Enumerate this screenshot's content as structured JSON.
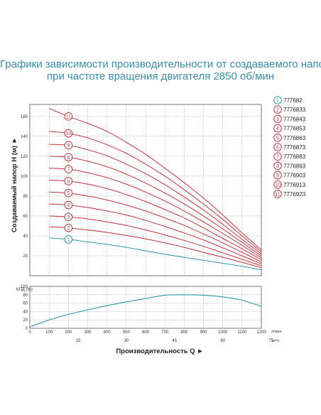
{
  "title_line1": "Графики зависимости производительности от создаваемого напора",
  "title_line2": "при частоте вращения двигателя 2850 об/мин",
  "chart_data": {
    "type": "line",
    "ylabel": "Создаваемый напор Н (м) ►",
    "xlabel": "Производительность Q ►",
    "x_unit_primary": "л/мин",
    "x_unit_secondary": "м³/ч",
    "xlim": [
      0,
      1200
    ],
    "ylim": [
      0,
      170
    ],
    "x_ticks": [
      "0",
      "100",
      "200",
      "300",
      "400",
      "500",
      "600",
      "700",
      "800",
      "900",
      "1000",
      "1100",
      "1200"
    ],
    "x_ticks_secondary": [
      "15",
      "30",
      "45",
      "60",
      "75"
    ],
    "y_ticks": [
      "20",
      "40",
      "60",
      "80",
      "100",
      "120",
      "140",
      "160"
    ],
    "x": [
      100,
      200,
      300,
      400,
      500,
      600,
      700,
      800,
      900,
      1000,
      1100,
      1200
    ],
    "series": [
      {
        "name": "777682",
        "marker": "1",
        "color": "#2a9aa5",
        "values": [
          38,
          36.5,
          34,
          31.5,
          28.5,
          25,
          21.5,
          18.5,
          15.5,
          12.5,
          9.5,
          6
        ]
      },
      {
        "name": "7776833",
        "marker": "2",
        "color": "#c8323c",
        "values": [
          49,
          48,
          46,
          43.5,
          40.5,
          37,
          33,
          28.5,
          23.5,
          18.5,
          13.5,
          8
        ]
      },
      {
        "name": "7776843",
        "marker": "3",
        "color": "#c8323c",
        "values": [
          60,
          59,
          57,
          54,
          50.5,
          46,
          41,
          35.5,
          29.5,
          23,
          16.5,
          10
        ]
      },
      {
        "name": "7776853",
        "marker": "4",
        "color": "#c8323c",
        "values": [
          72,
          71,
          68.5,
          65,
          61,
          55.5,
          49.5,
          43,
          36,
          28,
          20,
          12
        ]
      },
      {
        "name": "7776863",
        "marker": "5",
        "color": "#c8323c",
        "values": [
          84,
          83,
          80,
          76,
          71,
          65,
          58,
          50.5,
          42,
          33,
          23.5,
          14
        ]
      },
      {
        "name": "7776873",
        "marker": "6",
        "color": "#c8323c",
        "values": [
          96,
          95,
          92,
          87.5,
          81.5,
          74.5,
          66.5,
          58,
          48,
          37.5,
          27,
          16
        ]
      },
      {
        "name": "7776883",
        "marker": "7",
        "color": "#c8323c",
        "values": [
          108,
          107,
          103.5,
          98.5,
          92,
          84,
          75,
          65,
          54,
          42.5,
          30.5,
          18
        ]
      },
      {
        "name": "7776893",
        "marker": "8",
        "color": "#c8323c",
        "values": [
          120,
          119,
          115,
          109.5,
          102,
          93,
          83,
          72,
          60,
          47,
          33.5,
          20
        ]
      },
      {
        "name": "7776903",
        "marker": "9",
        "color": "#c8323c",
        "values": [
          132,
          131,
          126.5,
          120.5,
          112,
          102.5,
          91.5,
          79,
          66,
          51.5,
          36.5,
          22
        ]
      },
      {
        "name": "7776913",
        "marker": "10",
        "color": "#c8323c",
        "values": [
          145,
          143,
          138.5,
          131.5,
          123,
          112,
          100,
          86.5,
          72,
          56.5,
          40,
          24
        ]
      },
      {
        "name": "7776923",
        "marker": "11",
        "color": "#c8323c",
        "values": [
          168,
          160,
          153,
          145,
          134,
          122,
          108,
          93.5,
          78,
          61,
          43,
          26
        ]
      }
    ],
    "marker_x": 200,
    "efficiency": {
      "ylabel": "КПД (%)",
      "ylim": [
        0,
        100
      ],
      "y_ticks": [
        "0",
        "20",
        "40",
        "60",
        "80",
        "100"
      ],
      "x": [
        0,
        100,
        200,
        300,
        400,
        500,
        600,
        700,
        800,
        900,
        1000,
        1100,
        1200
      ],
      "values": [
        3,
        20,
        33,
        44,
        54,
        63,
        71,
        79,
        80,
        79,
        75,
        67,
        52
      ],
      "color": "#2a9aa5"
    },
    "grid": true
  }
}
